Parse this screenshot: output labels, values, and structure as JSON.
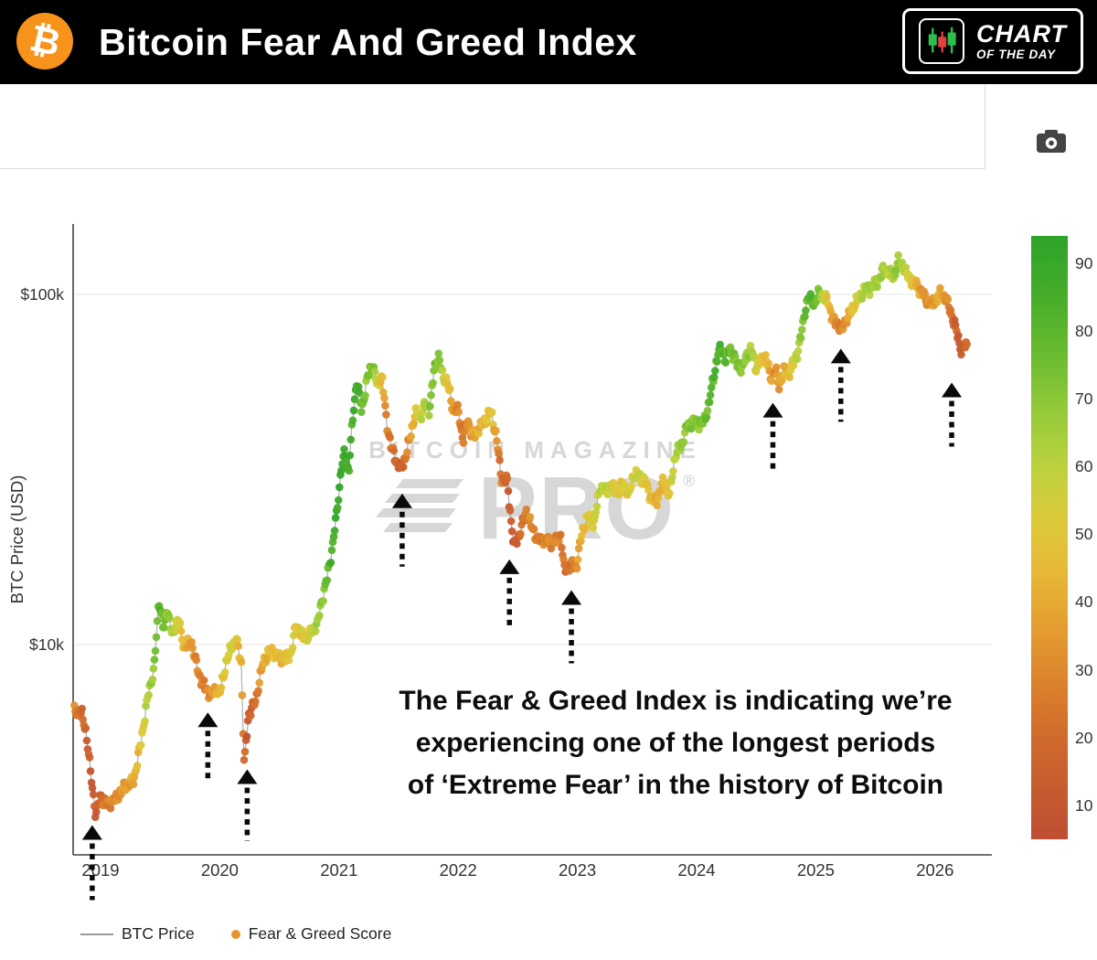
{
  "header": {
    "logo_symbol": "₿",
    "title": "Bitcoin Fear And Greed Index",
    "badge_line1": "CHART",
    "badge_line2": "OF THE DAY"
  },
  "watermark": {
    "top": "BITCOIN MAGAZINE",
    "main": "PRO",
    "reg": "®"
  },
  "annotation": {
    "line1": "The Fear & Greed Index is indicating we’re",
    "line2": "experiencing one of the longest periods",
    "line3": "of ‘Extreme Fear’ in the history of Bitcoin"
  },
  "legend": {
    "btc_price_label": "BTC Price",
    "fg_label": "Fear & Greed Score",
    "line_color": "#9a9a9a",
    "dot_color": "#e8932c"
  },
  "chart_data": {
    "type": "scatter",
    "title": "Bitcoin Fear And Greed Index",
    "ylabel": "BTC Price (USD)",
    "y_scale": "log",
    "y_ticks": [
      {
        "label": "$100k",
        "value": 100000
      },
      {
        "label": "$10k",
        "value": 10000
      }
    ],
    "x_tick_years": [
      "2019",
      "2020",
      "2021",
      "2022",
      "2023",
      "2024",
      "2025",
      "2026"
    ],
    "x_range": [
      2018.78,
      2026.5
    ],
    "colors": {
      "line": "#a0a0a0",
      "axis": "#444444",
      "grid": "#ebebeb",
      "arrow": "#0a0a0a"
    },
    "price_keypoints": [
      [
        2018.78,
        6450
      ],
      [
        2018.84,
        6350
      ],
      [
        2018.88,
        5600
      ],
      [
        2018.92,
        4200
      ],
      [
        2018.96,
        3250
      ],
      [
        2019.0,
        3700
      ],
      [
        2019.06,
        3500
      ],
      [
        2019.12,
        3600
      ],
      [
        2019.2,
        3900
      ],
      [
        2019.28,
        4100
      ],
      [
        2019.34,
        5300
      ],
      [
        2019.4,
        7200
      ],
      [
        2019.45,
        8600
      ],
      [
        2019.49,
        13500
      ],
      [
        2019.53,
        11000
      ],
      [
        2019.56,
        12800
      ],
      [
        2019.6,
        10600
      ],
      [
        2019.65,
        11900
      ],
      [
        2019.7,
        9800
      ],
      [
        2019.76,
        10200
      ],
      [
        2019.82,
        8300
      ],
      [
        2019.88,
        7500
      ],
      [
        2019.93,
        7200
      ],
      [
        2019.97,
        7500
      ],
      [
        2020.0,
        7200
      ],
      [
        2020.05,
        8800
      ],
      [
        2020.1,
        9900
      ],
      [
        2020.14,
        10300
      ],
      [
        2020.18,
        8900
      ],
      [
        2020.205,
        4500
      ],
      [
        2020.24,
        6300
      ],
      [
        2020.3,
        6900
      ],
      [
        2020.36,
        8800
      ],
      [
        2020.42,
        9600
      ],
      [
        2020.48,
        9300
      ],
      [
        2020.54,
        9100
      ],
      [
        2020.6,
        9500
      ],
      [
        2020.64,
        11400
      ],
      [
        2020.7,
        10400
      ],
      [
        2020.76,
        10700
      ],
      [
        2020.82,
        11500
      ],
      [
        2020.86,
        13500
      ],
      [
        2020.9,
        15500
      ],
      [
        2020.94,
        18500
      ],
      [
        2020.98,
        23500
      ],
      [
        2021.02,
        32000
      ],
      [
        2021.05,
        35500
      ],
      [
        2021.08,
        31000
      ],
      [
        2021.12,
        46000
      ],
      [
        2021.15,
        57000
      ],
      [
        2021.19,
        46500
      ],
      [
        2021.24,
        58000
      ],
      [
        2021.28,
        63500
      ],
      [
        2021.32,
        55000
      ],
      [
        2021.36,
        58500
      ],
      [
        2021.4,
        43000
      ],
      [
        2021.44,
        36500
      ],
      [
        2021.48,
        33500
      ],
      [
        2021.52,
        31500
      ],
      [
        2021.56,
        34500
      ],
      [
        2021.6,
        39500
      ],
      [
        2021.64,
        46000
      ],
      [
        2021.68,
        44500
      ],
      [
        2021.72,
        48500
      ],
      [
        2021.76,
        47000
      ],
      [
        2021.8,
        61500
      ],
      [
        2021.835,
        67000
      ],
      [
        2021.87,
        58000
      ],
      [
        2021.91,
        56500
      ],
      [
        2021.95,
        47500
      ],
      [
        2022.0,
        46500
      ],
      [
        2022.04,
        38500
      ],
      [
        2022.08,
        43500
      ],
      [
        2022.13,
        39000
      ],
      [
        2022.17,
        41500
      ],
      [
        2022.22,
        43000
      ],
      [
        2022.27,
        46500
      ],
      [
        2022.32,
        39500
      ],
      [
        2022.36,
        30000
      ],
      [
        2022.41,
        29500
      ],
      [
        2022.45,
        21500
      ],
      [
        2022.47,
        19000
      ],
      [
        2022.52,
        21000
      ],
      [
        2022.57,
        24000
      ],
      [
        2022.62,
        21500
      ],
      [
        2022.67,
        19800
      ],
      [
        2022.72,
        20000
      ],
      [
        2022.77,
        19500
      ],
      [
        2022.82,
        19800
      ],
      [
        2022.86,
        20500
      ],
      [
        2022.89,
        16300
      ],
      [
        2022.94,
        16900
      ],
      [
        2022.99,
        16600
      ],
      [
        2023.04,
        21000
      ],
      [
        2023.09,
        23300
      ],
      [
        2023.14,
        22100
      ],
      [
        2023.19,
        28300
      ],
      [
        2023.24,
        27600
      ],
      [
        2023.29,
        28500
      ],
      [
        2023.34,
        27200
      ],
      [
        2023.38,
        29000
      ],
      [
        2023.43,
        26600
      ],
      [
        2023.47,
        30600
      ],
      [
        2023.52,
        30200
      ],
      [
        2023.57,
        29200
      ],
      [
        2023.62,
        26100
      ],
      [
        2023.67,
        26000
      ],
      [
        2023.72,
        29300
      ],
      [
        2023.77,
        26600
      ],
      [
        2023.82,
        34600
      ],
      [
        2023.87,
        36800
      ],
      [
        2023.92,
        42100
      ],
      [
        2023.97,
        43500
      ],
      [
        2024.02,
        42800
      ],
      [
        2024.06,
        43100
      ],
      [
        2024.1,
        48000
      ],
      [
        2024.14,
        57500
      ],
      [
        2024.18,
        67500
      ],
      [
        2024.21,
        71000
      ],
      [
        2024.24,
        64500
      ],
      [
        2024.28,
        70500
      ],
      [
        2024.33,
        64000
      ],
      [
        2024.38,
        61000
      ],
      [
        2024.42,
        67200
      ],
      [
        2024.46,
        69500
      ],
      [
        2024.5,
        61500
      ],
      [
        2024.54,
        65000
      ],
      [
        2024.58,
        66500
      ],
      [
        2024.62,
        58000
      ],
      [
        2024.66,
        61000
      ],
      [
        2024.695,
        54500
      ],
      [
        2024.73,
        60500
      ],
      [
        2024.77,
        59000
      ],
      [
        2024.81,
        63500
      ],
      [
        2024.85,
        69000
      ],
      [
        2024.875,
        75500
      ],
      [
        2024.91,
        90500
      ],
      [
        2024.94,
        98000
      ],
      [
        2024.97,
        96000
      ],
      [
        2025.0,
        94500
      ],
      [
        2025.03,
        102500
      ],
      [
        2025.06,
        97500
      ],
      [
        2025.1,
        96800
      ],
      [
        2025.14,
        84500
      ],
      [
        2025.18,
        83500
      ],
      [
        2025.215,
        79000
      ],
      [
        2025.25,
        84500
      ],
      [
        2025.29,
        88000
      ],
      [
        2025.33,
        94500
      ],
      [
        2025.37,
        97500
      ],
      [
        2025.41,
        104000
      ],
      [
        2025.45,
        103500
      ],
      [
        2025.49,
        107500
      ],
      [
        2025.53,
        110500
      ],
      [
        2025.57,
        118500
      ],
      [
        2025.61,
        115500
      ],
      [
        2025.65,
        111500
      ],
      [
        2025.69,
        124000
      ],
      [
        2025.73,
        121000
      ],
      [
        2025.77,
        113000
      ],
      [
        2025.81,
        109500
      ],
      [
        2025.85,
        106000
      ],
      [
        2025.89,
        101500
      ],
      [
        2025.93,
        96500
      ],
      [
        2025.97,
        93500
      ],
      [
        2026.01,
        96500
      ],
      [
        2026.05,
        101000
      ],
      [
        2026.09,
        97500
      ],
      [
        2026.13,
        89500
      ],
      [
        2026.16,
        83000
      ],
      [
        2026.19,
        76000
      ],
      [
        2026.22,
        69500
      ],
      [
        2026.26,
        71500
      ]
    ],
    "fear_greed_keypoints": [
      [
        2018.78,
        28
      ],
      [
        2018.86,
        18
      ],
      [
        2018.94,
        10
      ],
      [
        2019.02,
        22
      ],
      [
        2019.1,
        30
      ],
      [
        2019.2,
        35
      ],
      [
        2019.3,
        42
      ],
      [
        2019.4,
        62
      ],
      [
        2019.5,
        80
      ],
      [
        2019.56,
        70
      ],
      [
        2019.62,
        60
      ],
      [
        2019.7,
        45
      ],
      [
        2019.8,
        30
      ],
      [
        2019.88,
        26
      ],
      [
        2019.96,
        38
      ],
      [
        2020.04,
        52
      ],
      [
        2020.12,
        58
      ],
      [
        2020.18,
        40
      ],
      [
        2020.22,
        10
      ],
      [
        2020.28,
        16
      ],
      [
        2020.36,
        40
      ],
      [
        2020.44,
        48
      ],
      [
        2020.52,
        44
      ],
      [
        2020.6,
        52
      ],
      [
        2020.68,
        48
      ],
      [
        2020.76,
        55
      ],
      [
        2020.84,
        68
      ],
      [
        2020.92,
        80
      ],
      [
        2021.0,
        92
      ],
      [
        2021.08,
        85
      ],
      [
        2021.15,
        88
      ],
      [
        2021.22,
        70
      ],
      [
        2021.28,
        74
      ],
      [
        2021.34,
        52
      ],
      [
        2021.4,
        28
      ],
      [
        2021.46,
        20
      ],
      [
        2021.52,
        15
      ],
      [
        2021.58,
        28
      ],
      [
        2021.64,
        48
      ],
      [
        2021.72,
        62
      ],
      [
        2021.8,
        75
      ],
      [
        2021.86,
        68
      ],
      [
        2021.92,
        45
      ],
      [
        2021.98,
        30
      ],
      [
        2022.05,
        24
      ],
      [
        2022.12,
        38
      ],
      [
        2022.2,
        44
      ],
      [
        2022.28,
        48
      ],
      [
        2022.34,
        26
      ],
      [
        2022.41,
        16
      ],
      [
        2022.47,
        9
      ],
      [
        2022.54,
        22
      ],
      [
        2022.61,
        30
      ],
      [
        2022.68,
        26
      ],
      [
        2022.76,
        30
      ],
      [
        2022.84,
        28
      ],
      [
        2022.9,
        20
      ],
      [
        2022.97,
        26
      ],
      [
        2023.04,
        44
      ],
      [
        2023.12,
        54
      ],
      [
        2023.2,
        60
      ],
      [
        2023.28,
        56
      ],
      [
        2023.36,
        50
      ],
      [
        2023.44,
        54
      ],
      [
        2023.52,
        58
      ],
      [
        2023.6,
        46
      ],
      [
        2023.68,
        40
      ],
      [
        2023.76,
        48
      ],
      [
        2023.84,
        64
      ],
      [
        2023.92,
        72
      ],
      [
        2024.0,
        70
      ],
      [
        2024.08,
        76
      ],
      [
        2024.16,
        84
      ],
      [
        2024.22,
        82
      ],
      [
        2024.3,
        74
      ],
      [
        2024.38,
        72
      ],
      [
        2024.46,
        64
      ],
      [
        2024.54,
        50
      ],
      [
        2024.6,
        42
      ],
      [
        2024.66,
        30
      ],
      [
        2024.72,
        40
      ],
      [
        2024.78,
        48
      ],
      [
        2024.84,
        60
      ],
      [
        2024.9,
        76
      ],
      [
        2024.96,
        82
      ],
      [
        2025.02,
        74
      ],
      [
        2025.08,
        56
      ],
      [
        2025.14,
        36
      ],
      [
        2025.2,
        24
      ],
      [
        2025.26,
        34
      ],
      [
        2025.32,
        52
      ],
      [
        2025.38,
        60
      ],
      [
        2025.44,
        66
      ],
      [
        2025.5,
        64
      ],
      [
        2025.56,
        68
      ],
      [
        2025.62,
        58
      ],
      [
        2025.68,
        70
      ],
      [
        2025.74,
        62
      ],
      [
        2025.8,
        50
      ],
      [
        2025.86,
        40
      ],
      [
        2025.92,
        30
      ],
      [
        2025.98,
        34
      ],
      [
        2026.04,
        42
      ],
      [
        2026.1,
        30
      ],
      [
        2026.14,
        22
      ],
      [
        2026.18,
        14
      ],
      [
        2026.22,
        12
      ],
      [
        2026.26,
        18
      ]
    ],
    "colorbar": {
      "ticks": [
        90,
        80,
        70,
        60,
        50,
        40,
        30,
        20,
        10
      ],
      "vmin": 5,
      "vmax": 94,
      "stops": [
        {
          "v": 5,
          "c": "#bf4e33"
        },
        {
          "v": 12,
          "c": "#c65a2f"
        },
        {
          "v": 20,
          "c": "#d06a2c"
        },
        {
          "v": 28,
          "c": "#db822c"
        },
        {
          "v": 36,
          "c": "#e49c30"
        },
        {
          "v": 44,
          "c": "#e7b736"
        },
        {
          "v": 52,
          "c": "#ddca3a"
        },
        {
          "v": 60,
          "c": "#bcd23e"
        },
        {
          "v": 68,
          "c": "#95ca39"
        },
        {
          "v": 76,
          "c": "#6cbc30"
        },
        {
          "v": 85,
          "c": "#47ad2a"
        },
        {
          "v": 94,
          "c": "#2da329"
        }
      ]
    },
    "extreme_fear_arrows": [
      {
        "t": 2018.93,
        "price": 3050,
        "tail": 62
      },
      {
        "t": 2019.9,
        "price": 6400,
        "tail": 55
      },
      {
        "t": 2020.23,
        "price": 4400,
        "tail": 58
      },
      {
        "t": 2021.53,
        "price": 27000,
        "tail": 60
      },
      {
        "t": 2022.43,
        "price": 17500,
        "tail": 55
      },
      {
        "t": 2022.95,
        "price": 14300,
        "tail": 60
      },
      {
        "t": 2024.64,
        "price": 49000,
        "tail": 55
      },
      {
        "t": 2025.21,
        "price": 70000,
        "tail": 60
      },
      {
        "t": 2026.14,
        "price": 56000,
        "tail": 50
      }
    ]
  }
}
